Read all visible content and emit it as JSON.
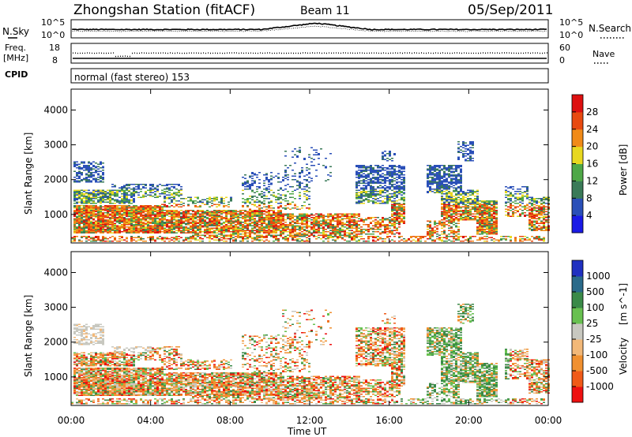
{
  "header": {
    "station": "Zhongshan Station (fitACF)",
    "beam": "Beam 11",
    "date": "05/Sep/2011"
  },
  "noise_panel": {
    "left_label": "N.Sky",
    "right_label": "N.Search",
    "left_ticks": [
      "10^5",
      "10^0"
    ],
    "right_ticks": [
      "10^5",
      "10^0"
    ]
  },
  "freq_panel": {
    "left_label": "Freq.",
    "left_unit": "[MHz]",
    "right_label": "Nave",
    "left_ticks": [
      "18",
      "8"
    ],
    "right_ticks": [
      "60",
      "0"
    ]
  },
  "cpid": {
    "label": "CPID",
    "mode_text": "normal (fast stereo) 153"
  },
  "colors": {
    "power": [
      "#1a1ae6",
      "#2a4fb8",
      "#3a7a58",
      "#4fa848",
      "#e8d820",
      "#f08a18",
      "#e84a10",
      "#dd1010"
    ],
    "velocity": [
      "#ee1010",
      "#f05a18",
      "#f09030",
      "#f2b878",
      "#c8c8c0",
      "#68c050",
      "#3a8a48",
      "#2a6a8a",
      "#2030c0"
    ]
  },
  "chart_data": [
    {
      "type": "heatmap",
      "name": "power",
      "xlabel": "Time UT",
      "ylabel": "Slant Range [km]",
      "colorbar_label": "Power [dB]",
      "colorbar_ticks": [
        "28",
        "24",
        "20",
        "16",
        "12",
        "8",
        "4"
      ],
      "x_ticks": [
        "00:00",
        "04:00",
        "08:00",
        "12:00",
        "16:00",
        "20:00",
        "00:00"
      ],
      "y_ticks": [
        "1000",
        "2000",
        "3000",
        "4000"
      ],
      "ylim": [
        180,
        4600
      ],
      "xlim": [
        0,
        24
      ]
    },
    {
      "type": "heatmap",
      "name": "velocity",
      "xlabel": "Time UT",
      "ylabel": "Slant Range [km]",
      "colorbar_label": "Velocity",
      "colorbar_unit": "[m s^-1]",
      "colorbar_ticks": [
        "1000",
        "500",
        "100",
        "25",
        "-25",
        "-100",
        "-500",
        "-1000"
      ],
      "x_ticks": [
        "00:00",
        "04:00",
        "08:00",
        "12:00",
        "16:00",
        "20:00",
        "00:00"
      ],
      "y_ticks": [
        "1000",
        "2000",
        "3000",
        "4000"
      ],
      "ylim": [
        180,
        4600
      ],
      "xlim": [
        0,
        24
      ]
    }
  ]
}
